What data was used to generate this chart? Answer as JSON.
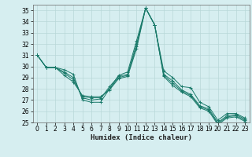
{
  "xlabel": "Humidex (Indice chaleur)",
  "bg_color": "#d6eef0",
  "grid_color": "#b8d8d8",
  "line_color": "#1a7a6a",
  "xlim": [
    -0.5,
    23.5
  ],
  "ylim": [
    25,
    35.5
  ],
  "yticks": [
    25,
    26,
    27,
    28,
    29,
    30,
    31,
    32,
    33,
    34,
    35
  ],
  "xticks": [
    0,
    1,
    2,
    3,
    4,
    5,
    6,
    7,
    8,
    9,
    10,
    11,
    12,
    13,
    14,
    15,
    16,
    17,
    18,
    19,
    20,
    21,
    22,
    23
  ],
  "series": [
    [
      31.0,
      29.9,
      29.9,
      29.7,
      29.3,
      27.0,
      26.8,
      26.8,
      28.0,
      29.2,
      29.5,
      32.3,
      35.2,
      33.7,
      29.6,
      29.0,
      28.2,
      28.1,
      26.8,
      26.4,
      25.2,
      25.8,
      25.8,
      25.4
    ],
    [
      31.0,
      29.9,
      29.9,
      29.5,
      29.0,
      27.2,
      27.0,
      27.1,
      28.2,
      29.1,
      29.3,
      32.0,
      35.2,
      33.7,
      29.3,
      28.7,
      27.9,
      27.5,
      26.5,
      26.2,
      25.0,
      25.6,
      25.7,
      25.3
    ],
    [
      31.0,
      29.9,
      29.9,
      29.4,
      28.8,
      27.3,
      27.2,
      27.2,
      28.0,
      29.0,
      29.2,
      31.8,
      35.2,
      33.7,
      29.2,
      28.5,
      27.8,
      27.4,
      26.4,
      26.1,
      24.9,
      25.5,
      25.6,
      25.2
    ],
    [
      31.0,
      29.9,
      29.9,
      29.2,
      28.6,
      27.4,
      27.3,
      27.3,
      27.9,
      28.9,
      29.1,
      31.6,
      35.2,
      33.7,
      29.1,
      28.3,
      27.7,
      27.3,
      26.3,
      26.0,
      24.8,
      25.4,
      25.5,
      25.1
    ]
  ]
}
